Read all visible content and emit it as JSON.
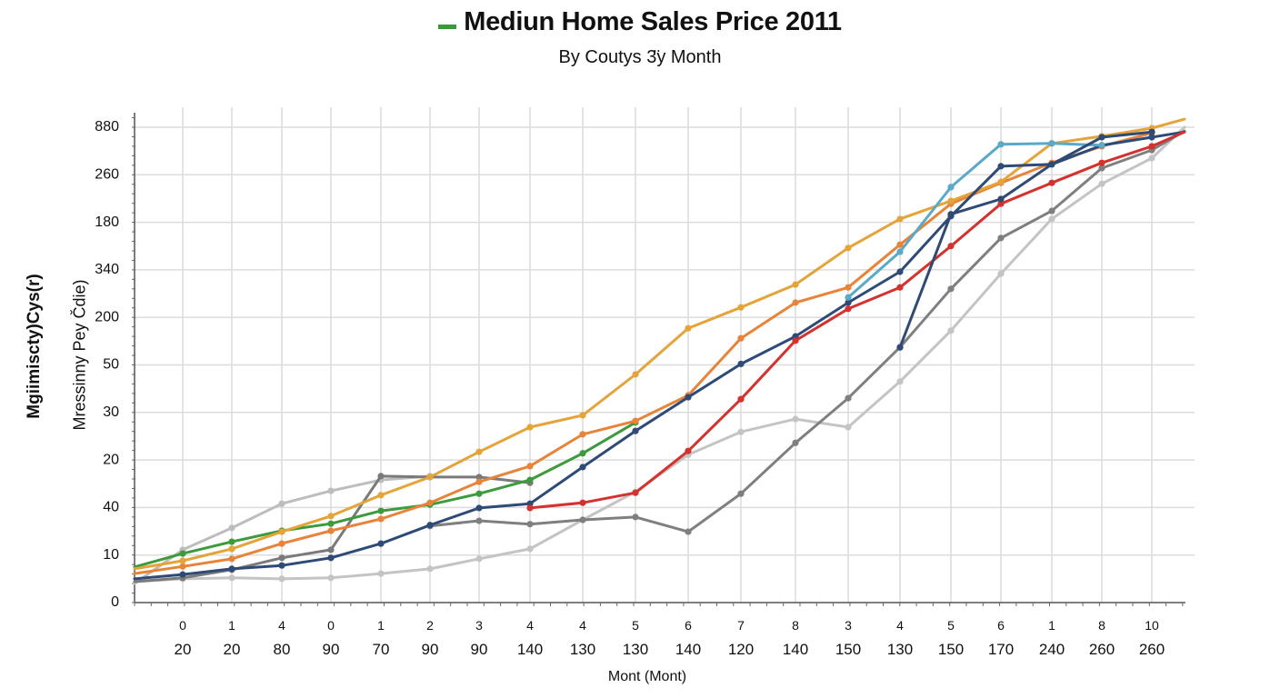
{
  "chart_data": {
    "type": "line",
    "title": "Mediun Home Sales Price 2011",
    "title_swatch_color": "#3a9a3a",
    "subtitle": "By Coutys 3̈y Month",
    "xlabel": "Mont (Mont)",
    "ylabel": [
      "Mgiimiscty)Cys(r)",
      "Mressinny Pey C̆die)"
    ],
    "yticks": [
      "0",
      "10",
      "40",
      "20",
      "30",
      "50",
      "200",
      "340",
      "180",
      "260",
      "880"
    ],
    "y_value_note": "Series values are expressed as positions on the tick index scale (0 = bottom tick '0', 10 = top tick '880'), since the printed tick labels are non-monotonic.",
    "ylim": [
      0,
      10
    ],
    "grid": true,
    "xticks_top": [
      "0",
      "1",
      "4",
      "0",
      "1",
      "2",
      "3",
      "4",
      "4",
      "5",
      "6",
      "7",
      "8",
      "3",
      "4",
      "5",
      "6",
      "1",
      "8",
      "10"
    ],
    "xticks_bottom": [
      "20",
      "20",
      "80",
      "90",
      "70",
      "90",
      "90",
      "140",
      "130",
      "130",
      "140",
      "120",
      "140",
      "150",
      "130",
      "150",
      "170",
      "240",
      "260",
      "260"
    ],
    "x_index_note": "x = -1 is the left axis edge, 0..19 are the labeled gridline columns, 19.65 is the right edge",
    "series": [
      {
        "name": "Light gray A",
        "color": "#c4c4c4",
        "x": [
          -1,
          0,
          1,
          2,
          3,
          4,
          5,
          6,
          7,
          8,
          9,
          10,
          11,
          12,
          13,
          14,
          15,
          16,
          17,
          18,
          19,
          19.65
        ],
        "y": [
          0.44,
          0.5,
          0.52,
          0.5,
          0.52,
          0.61,
          0.71,
          0.92,
          1.13,
          1.74,
          2.33,
          3.11,
          3.59,
          3.86,
          3.69,
          4.65,
          5.72,
          6.92,
          8.07,
          8.81,
          9.35,
          10.0
        ]
      },
      {
        "name": "Light gray B",
        "color": "#bdbdbd",
        "x": [
          -1,
          0,
          1,
          2,
          3,
          4,
          5
        ],
        "y": [
          0.4,
          1.11,
          1.57,
          2.08,
          2.35,
          2.58,
          2.66
        ]
      },
      {
        "name": "Dark gray A",
        "color": "#7a7a7a",
        "x": [
          -1,
          0,
          1,
          2,
          3,
          4,
          5,
          6,
          7
        ],
        "y": [
          0.44,
          0.52,
          0.69,
          0.94,
          1.11,
          2.66,
          2.64,
          2.64,
          2.52
        ]
      },
      {
        "name": "Dark gray B",
        "color": "#7f7f7f",
        "x": [
          5,
          6,
          7,
          8,
          9,
          10,
          11,
          12,
          13,
          14,
          15,
          16,
          17,
          18,
          19,
          19.65
        ],
        "y": [
          1.61,
          1.72,
          1.65,
          1.74,
          1.8,
          1.49,
          2.29,
          3.36,
          4.3,
          5.37,
          6.6,
          7.67,
          8.24,
          9.14,
          9.52,
          9.92
        ]
      },
      {
        "name": "Green",
        "color": "#3d9b3d",
        "x": [
          -1,
          0,
          1,
          2,
          3,
          4,
          5,
          6,
          7,
          8,
          9
        ],
        "y": [
          0.75,
          1.03,
          1.28,
          1.51,
          1.66,
          1.93,
          2.06,
          2.29,
          2.58,
          3.14,
          3.79
        ]
      },
      {
        "name": "Orange",
        "color": "#e8833a",
        "x": [
          -1,
          0,
          1,
          2,
          3,
          4,
          5,
          6,
          7,
          8,
          9,
          10,
          11,
          12,
          13,
          14,
          15,
          16,
          17,
          18,
          19
        ],
        "y": [
          0.61,
          0.76,
          0.92,
          1.24,
          1.51,
          1.76,
          2.1,
          2.54,
          2.87,
          3.54,
          3.82,
          4.36,
          5.56,
          6.31,
          6.63,
          7.53,
          8.39,
          8.83,
          9.25,
          9.6,
          9.88
        ]
      },
      {
        "name": "Gold",
        "color": "#e5a43a",
        "x": [
          -1,
          0,
          1,
          2,
          3,
          4,
          5,
          6,
          7,
          8,
          9,
          10,
          11,
          12,
          13,
          14,
          15,
          16,
          17,
          18,
          19,
          19.65
        ],
        "y": [
          0.71,
          0.88,
          1.13,
          1.49,
          1.82,
          2.26,
          2.64,
          3.17,
          3.69,
          3.94,
          4.8,
          5.77,
          6.21,
          6.69,
          7.46,
          8.07,
          8.45,
          8.85,
          9.66,
          9.81,
          9.98,
          10.17
        ]
      },
      {
        "name": "Navy A",
        "color": "#2e4b78",
        "x": [
          -1,
          0,
          1,
          2,
          3,
          4,
          5,
          6,
          7,
          8,
          9,
          10,
          11,
          12,
          13,
          14,
          15,
          16,
          17,
          18,
          19,
          19.65
        ],
        "y": [
          0.5,
          0.59,
          0.71,
          0.78,
          0.94,
          1.24,
          1.63,
          1.99,
          2.08,
          2.85,
          3.61,
          4.32,
          5.02,
          5.6,
          6.31,
          6.96,
          8.13,
          9.18,
          9.22,
          9.62,
          9.79,
          9.9
        ]
      },
      {
        "name": "Red",
        "color": "#d3322f",
        "x": [
          7,
          8,
          9,
          10,
          11,
          12,
          13,
          14,
          15,
          16,
          17,
          18,
          19,
          19.65
        ],
        "y": [
          1.99,
          2.1,
          2.31,
          3.19,
          4.28,
          5.51,
          6.18,
          6.63,
          7.5,
          8.39,
          8.83,
          9.25,
          9.6,
          9.9
        ]
      },
      {
        "name": "Light blue",
        "color": "#5aa9c8",
        "x": [
          13,
          14,
          15,
          16,
          17,
          18
        ],
        "y": [
          6.42,
          7.38,
          8.74,
          9.64,
          9.66,
          9.62
        ]
      },
      {
        "name": "Navy B",
        "color": "#2f4a73",
        "x": [
          14,
          15,
          16,
          17,
          18,
          19
        ],
        "y": [
          5.37,
          8.17,
          8.49,
          9.22,
          9.79,
          9.9
        ]
      }
    ]
  }
}
